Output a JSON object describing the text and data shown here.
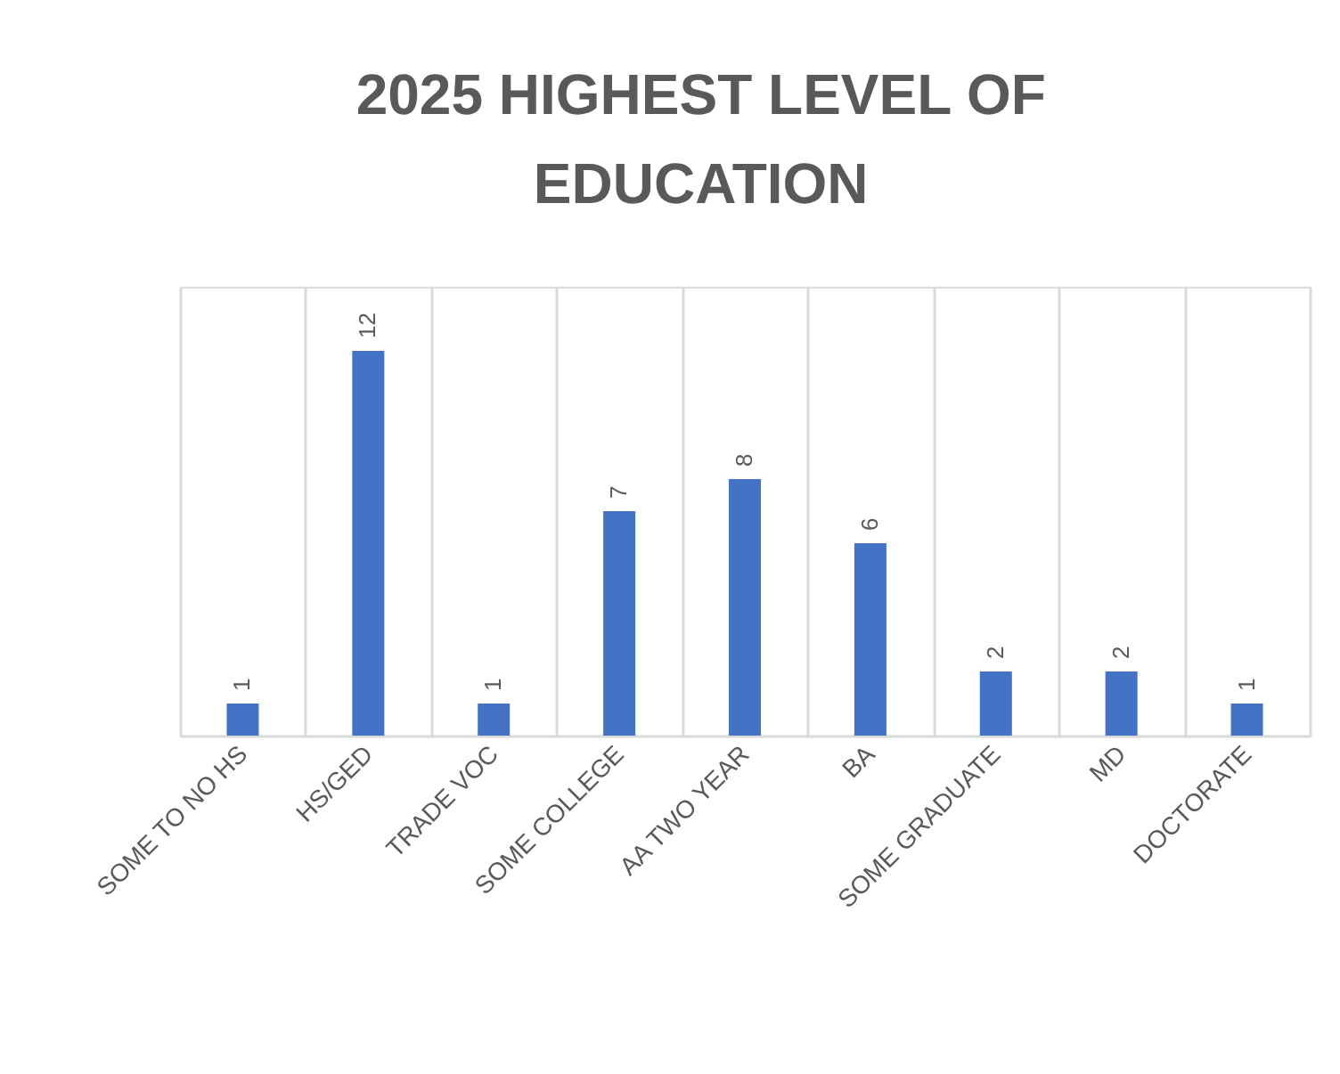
{
  "chart_data": {
    "type": "bar",
    "title": "2025 HIGHEST LEVEL OF EDUCATION",
    "categories": [
      "SOME TO NO HS",
      "HS/GED",
      "TRADE VOC",
      "SOME COLLEGE",
      "AA TWO YEAR",
      "BA",
      "SOME GRADUATE",
      "MD",
      "DOCTORATE"
    ],
    "values": [
      1,
      12,
      1,
      7,
      8,
      6,
      2,
      2,
      1
    ],
    "color": "#4472c4",
    "data_labels": true,
    "grid": "x"
  }
}
